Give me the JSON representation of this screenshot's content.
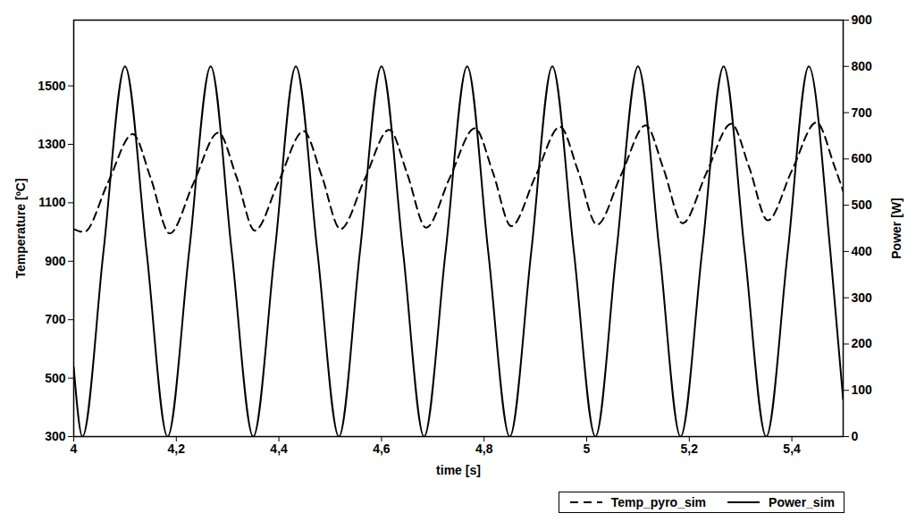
{
  "chart_data": {
    "type": "line",
    "x_label": "time [s]",
    "y_label": "Temperature [ºC]",
    "y2_label": "Power [W]",
    "xlim": [
      4,
      5.5
    ],
    "xticks": [
      4,
      {
        "value": 4.2,
        "label": "4,2"
      },
      {
        "value": 4.4,
        "label": "4,4"
      },
      {
        "value": 4.6,
        "label": "4,6"
      },
      {
        "value": 4.8,
        "label": "4,8"
      },
      5,
      {
        "value": 5.2,
        "label": "5,2"
      },
      {
        "value": 5.4,
        "label": "5,4"
      }
    ],
    "ylim": [
      300,
      1725
    ],
    "yticks": [
      300,
      500,
      700,
      900,
      1100,
      1300,
      1500
    ],
    "y2lim": [
      0,
      900
    ],
    "y2ticks": [
      0,
      100,
      200,
      300,
      400,
      500,
      600,
      700,
      800,
      900
    ],
    "grid": false,
    "legend": "bottom",
    "series": [
      {
        "name": "Temp_pyro_sim",
        "color": "#000000",
        "line_style": "dashed",
        "x": [
          4.0,
          4.02,
          4.067,
          4.115,
          4.15,
          4.187,
          4.233,
          4.282,
          4.317,
          4.353,
          4.4,
          4.448,
          4.483,
          4.52,
          4.567,
          4.615,
          4.65,
          4.687,
          4.733,
          4.782,
          4.817,
          4.853,
          4.9,
          4.948,
          4.983,
          5.02,
          5.067,
          5.115,
          5.15,
          5.187,
          5.233,
          5.282,
          5.317,
          5.353,
          5.4,
          5.448,
          5.483,
          5.5
        ],
        "values": [
          1010,
          1000,
          1170,
          1335,
          1185,
          995,
          1165,
          1340,
          1190,
          1005,
          1175,
          1345,
          1195,
          1010,
          1180,
          1350,
          1200,
          1015,
          1185,
          1355,
          1205,
          1020,
          1190,
          1360,
          1210,
          1025,
          1195,
          1365,
          1215,
          1030,
          1200,
          1370,
          1220,
          1040,
          1210,
          1375,
          1225,
          1140
        ]
      },
      {
        "name": "Power_sim",
        "color": "#000000",
        "line_style": "solid",
        "axis": "y2",
        "x": [
          4.0,
          4.017,
          4.058,
          4.1,
          4.142,
          4.183,
          4.225,
          4.267,
          4.308,
          4.35,
          4.392,
          4.433,
          4.475,
          4.517,
          4.558,
          4.6,
          4.642,
          4.683,
          4.725,
          4.767,
          4.808,
          4.85,
          4.892,
          4.933,
          4.975,
          5.017,
          5.058,
          5.1,
          5.142,
          5.183,
          5.225,
          5.267,
          5.308,
          5.35,
          5.392,
          5.433,
          5.475,
          5.5
        ],
        "values": [
          150,
          0,
          400,
          800,
          400,
          0,
          400,
          800,
          400,
          0,
          400,
          800,
          400,
          0,
          400,
          800,
          400,
          0,
          400,
          800,
          400,
          0,
          400,
          800,
          400,
          0,
          400,
          800,
          400,
          0,
          400,
          800,
          400,
          0,
          400,
          800,
          400,
          80
        ]
      }
    ]
  }
}
